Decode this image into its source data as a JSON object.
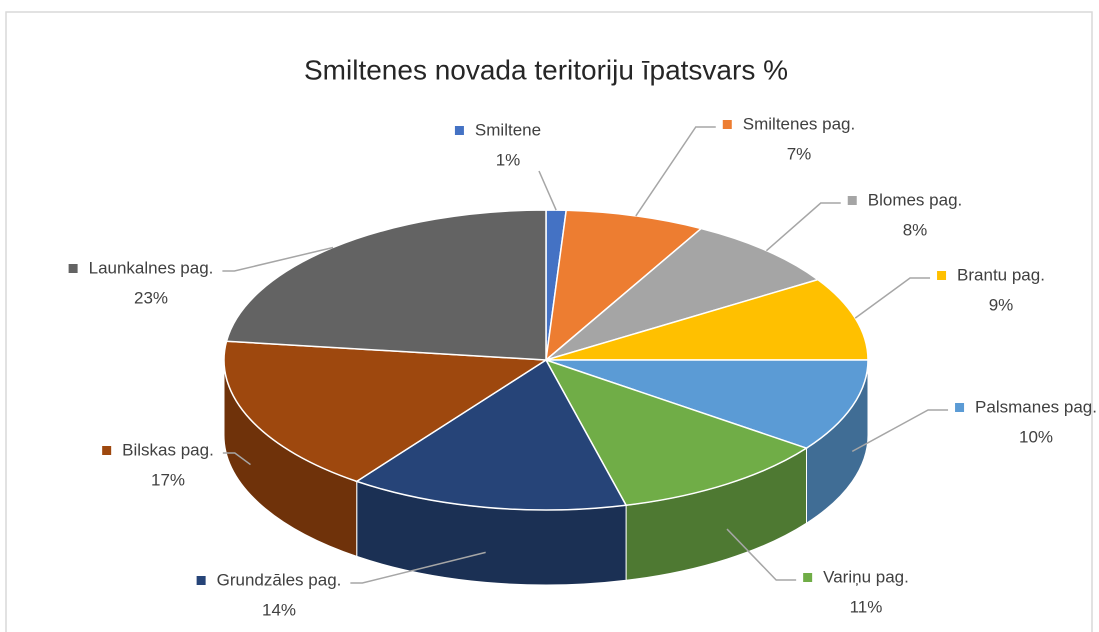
{
  "chart_data": {
    "type": "pie",
    "title": "Smiltenes novada teritoriju īpatsvars %",
    "categories": [
      "Smiltene",
      "Smiltenes pag.",
      "Blomes pag.",
      "Brantu pag.",
      "Palsmanes pag.",
      "Variņu pag.",
      "Grundzāles pag.",
      "Bilskas pag.",
      "Launkalnes pag."
    ],
    "values": [
      1,
      7,
      8,
      9,
      10,
      11,
      14,
      17,
      23
    ],
    "value_labels": [
      "1%",
      "7%",
      "8%",
      "9%",
      "10%",
      "11%",
      "14%",
      "17%",
      "23%"
    ],
    "colors": [
      "#4472c4",
      "#ed7d31",
      "#a5a5a5",
      "#ffc000",
      "#5b9bd5",
      "#70ad47",
      "#264478",
      "#9e480e",
      "#636363"
    ]
  }
}
